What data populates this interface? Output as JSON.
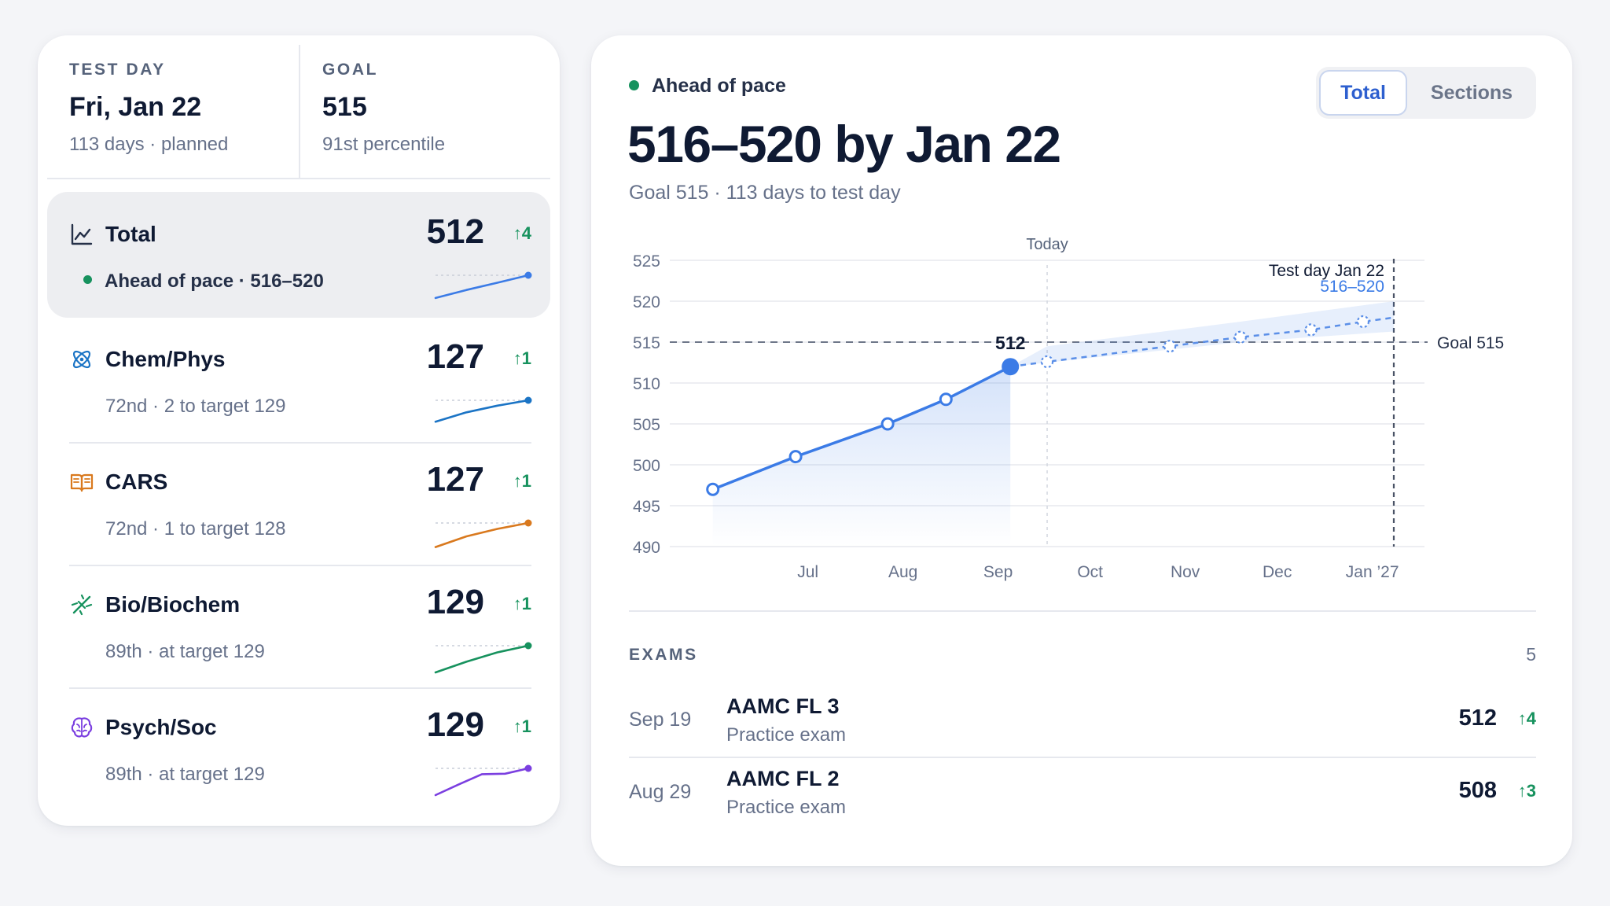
{
  "summary": {
    "test_day": {
      "label": "TEST DAY",
      "value": "Fri, Jan 22",
      "sub": "113 days · planned"
    },
    "goal": {
      "label": "GOAL",
      "value": "515",
      "sub": "91st percentile"
    }
  },
  "sections": [
    {
      "name": "Total",
      "score": "512",
      "delta": "4",
      "desc": "Ahead of pace · 516–520",
      "icon": "line-chart-icon",
      "color": "#3b7be6",
      "spark": [
        0.15,
        0.45,
        0.72,
        1.0
      ]
    },
    {
      "name": "Chem/Phys",
      "score": "127",
      "delta": "1",
      "desc": "72nd · 2 to target 129",
      "icon": "atom-icon",
      "color": "#1b74c5",
      "spark": [
        0.2,
        0.55,
        0.8,
        1.0
      ]
    },
    {
      "name": "CARS",
      "score": "127",
      "delta": "1",
      "desc": "72nd · 1 to target 128",
      "icon": "book-icon",
      "color": "#d9791e",
      "spark": [
        0.1,
        0.5,
        0.78,
        1.0
      ]
    },
    {
      "name": "Bio/Biochem",
      "score": "129",
      "delta": "1",
      "desc": "89th · at target 129",
      "icon": "dna-icon",
      "color": "#17925e",
      "spark": [
        0.0,
        0.4,
        0.75,
        1.0
      ]
    },
    {
      "name": "Psych/Soc",
      "score": "129",
      "delta": "1",
      "desc": "89th · at target 129",
      "icon": "brain-icon",
      "color": "#7b3fe0",
      "spark": [
        0.0,
        0.4,
        0.78,
        0.8,
        1.0
      ]
    }
  ],
  "header": {
    "status": "Ahead of pace",
    "title": "516–520 by Jan 22",
    "subtitle": "Goal 515 · 113 days to test day",
    "toggle": {
      "total": "Total",
      "sections": "Sections"
    }
  },
  "chart_data": {
    "type": "line",
    "ylim": [
      490,
      525
    ],
    "yticks": [
      490,
      495,
      500,
      505,
      510,
      515,
      520,
      525
    ],
    "xticks": [
      "Jul",
      "Aug",
      "Sep",
      "Oct",
      "Nov",
      "Dec",
      "Jan ’27"
    ],
    "today_label": "Today",
    "goal": 515,
    "goal_label": "Goal 515",
    "test_day_label": "Test day Jan 22",
    "test_day_range": "516–520",
    "series": [
      {
        "values": [
          {
            "x": "2026-06-14",
            "y": 497
          },
          {
            "x": "2026-07-11",
            "y": 501
          },
          {
            "x": "2026-08-10",
            "y": 505
          },
          {
            "x": "2026-08-29",
            "y": 508
          },
          {
            "x": "2026-09-19",
            "y": 512
          }
        ]
      },
      {
        "values": [
          {
            "x": "2026-09-19",
            "y": 512
          },
          {
            "x": "2026-10-01",
            "y": 512.6
          },
          {
            "x": "2026-11-10",
            "y": 514.5
          },
          {
            "x": "2026-12-03",
            "y": 515.6
          },
          {
            "x": "2026-12-26",
            "y": 516.5
          },
          {
            "x": "2027-01-12",
            "y": 517.5
          },
          {
            "x": "2027-01-22",
            "y": 518
          }
        ]
      }
    ],
    "projection_band": {
      "lower": [
        512,
        512.5,
        515,
        516.3
      ],
      "upper": [
        512,
        514.5,
        517.5,
        520
      ]
    },
    "current_label": "512"
  },
  "exams": {
    "label": "EXAMS",
    "count": "5",
    "items": [
      {
        "date": "Sep 19",
        "name": "AAMC FL 3",
        "type": "Practice exam",
        "score": "512",
        "delta": "4"
      },
      {
        "date": "Aug 29",
        "name": "AAMC FL 2",
        "type": "Practice exam",
        "score": "508",
        "delta": "3"
      }
    ]
  }
}
